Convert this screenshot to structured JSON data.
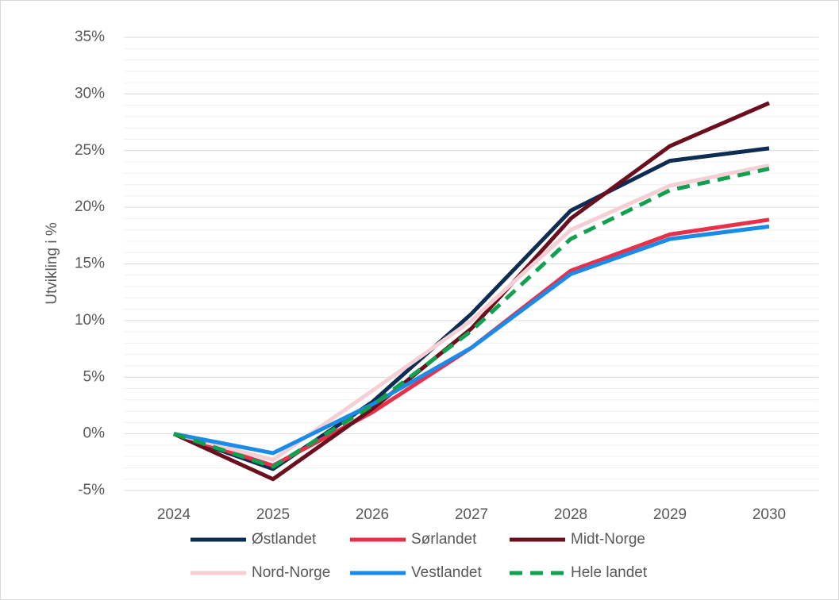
{
  "chart_data": {
    "type": "line",
    "y_label": "Utvikling i %",
    "categories": [
      "2024",
      "2025",
      "2026",
      "2027",
      "2028",
      "2029",
      "2030"
    ],
    "ylim": [
      -5,
      35
    ],
    "yticks": [
      {
        "value": -5,
        "label": "-5%"
      },
      {
        "value": 0,
        "label": "0%"
      },
      {
        "value": 5,
        "label": "5%"
      },
      {
        "value": 10,
        "label": "10%"
      },
      {
        "value": 15,
        "label": "15%"
      },
      {
        "value": 20,
        "label": "20%"
      },
      {
        "value": 25,
        "label": "25%"
      },
      {
        "value": 30,
        "label": "30%"
      },
      {
        "value": 35,
        "label": "35%"
      }
    ],
    "grid": true,
    "minor_grid": true,
    "legend": "bottom",
    "series": [
      {
        "name": "Østlandet",
        "color": "#0d2d52",
        "values": [
          0,
          -3.1,
          2.8,
          10.6,
          19.7,
          24.1,
          25.2
        ]
      },
      {
        "name": "Sørlandet",
        "color": "#e8304a",
        "values": [
          0,
          -2.8,
          1.9,
          7.6,
          14.4,
          17.6,
          18.9
        ]
      },
      {
        "name": "Midt-Norge",
        "color": "#6b0f1e",
        "values": [
          0,
          -4.0,
          2.2,
          9.3,
          19.0,
          25.4,
          29.2
        ]
      },
      {
        "name": "Nord-Norge",
        "color": "#f5cfd3",
        "values": [
          0,
          -2.3,
          3.8,
          10.0,
          18.0,
          21.9,
          23.7
        ]
      },
      {
        "name": "Vestlandet",
        "color": "#1a8be8",
        "values": [
          0,
          -1.7,
          2.6,
          7.6,
          14.1,
          17.2,
          18.3
        ]
      },
      {
        "name": "Hele landet",
        "color": "#10a050",
        "line_style": "dashed",
        "values": [
          0,
          -2.9,
          2.5,
          9.1,
          17.2,
          21.5,
          23.4
        ]
      }
    ]
  }
}
